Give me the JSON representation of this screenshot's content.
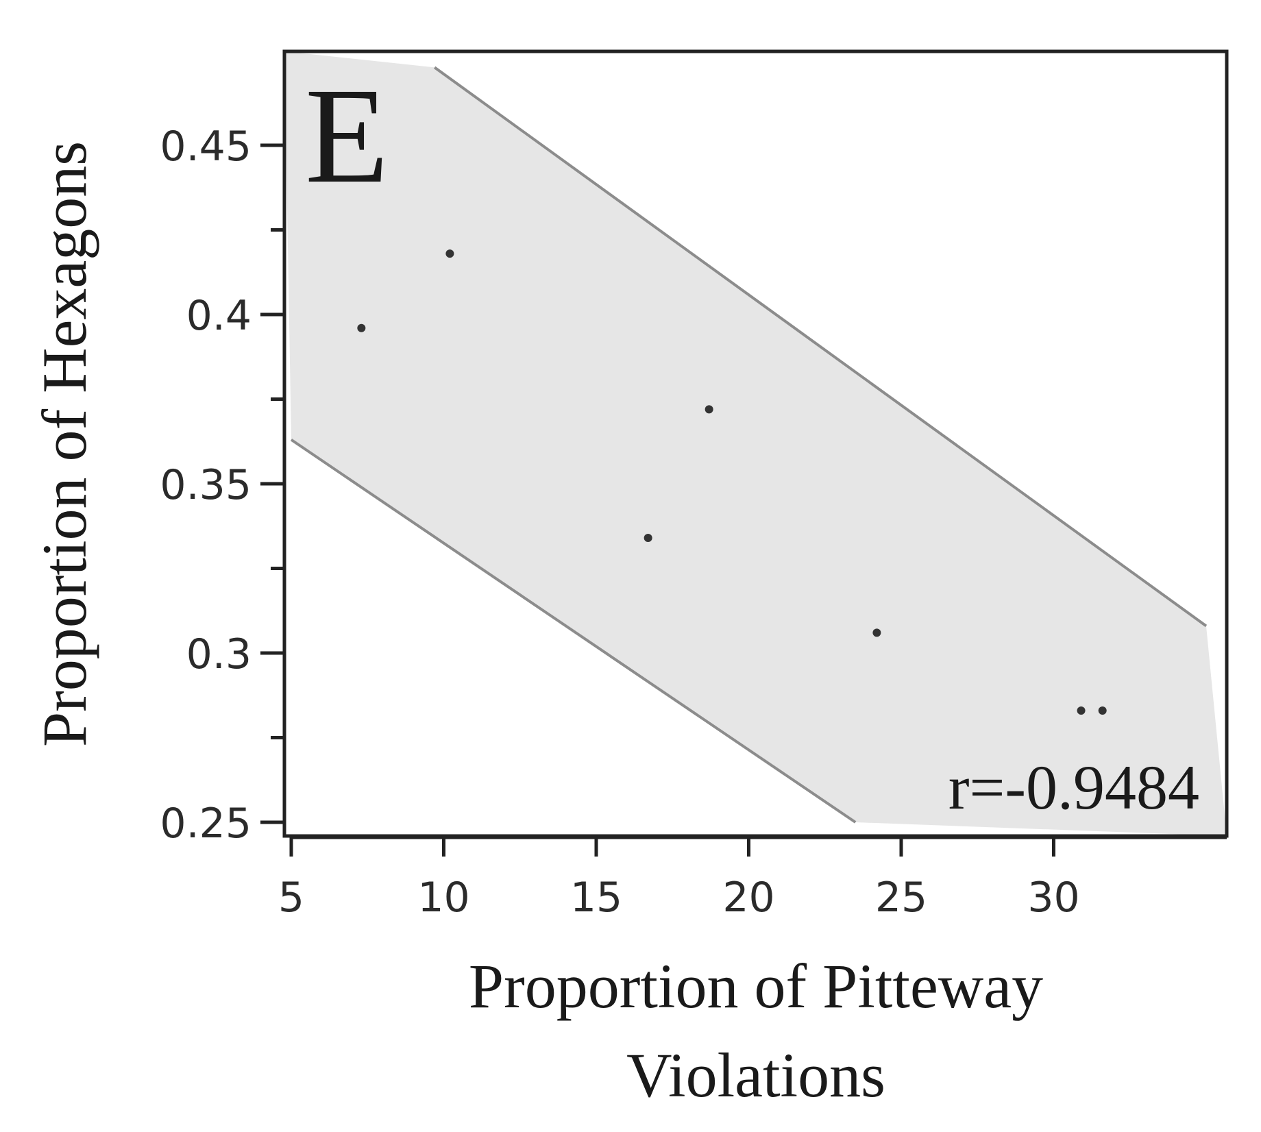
{
  "chart_data": {
    "type": "scatter",
    "panel_label": "E",
    "xlabel_lines": [
      "Proportion of Pitteway",
      "Violations"
    ],
    "ylabel": "Proportion of Hexagons",
    "xlim": [
      5,
      35
    ],
    "ylim": [
      0.25,
      0.475
    ],
    "x_ticks": [
      5,
      10,
      15,
      20,
      25,
      30
    ],
    "x_tick_labels": [
      "5",
      "10",
      "15",
      "20",
      "25",
      "30"
    ],
    "y_ticks": [
      0.25,
      0.3,
      0.35,
      0.4,
      0.45
    ],
    "y_tick_labels": [
      "0.25",
      "0.3",
      "0.35",
      "0.4",
      "0.45"
    ],
    "y_minor_ticks": [
      0.275,
      0.325,
      0.375,
      0.425
    ],
    "points": [
      {
        "x": 7.3,
        "y": 0.396
      },
      {
        "x": 10.2,
        "y": 0.418
      },
      {
        "x": 16.7,
        "y": 0.334
      },
      {
        "x": 18.7,
        "y": 0.372
      },
      {
        "x": 24.2,
        "y": 0.306
      },
      {
        "x": 30.9,
        "y": 0.283
      },
      {
        "x": 31.6,
        "y": 0.283
      }
    ],
    "confidence_band": {
      "upper": [
        [
          9.7,
          0.473
        ],
        [
          35,
          0.308
        ]
      ],
      "lower": [
        [
          5,
          0.363
        ],
        [
          23.5,
          0.25
        ]
      ]
    },
    "annotation": "r=-0.9484",
    "grid": false,
    "colors": {
      "band_fill": "#e6e6e6",
      "band_edge": "#8c8c8c",
      "points": "#333333",
      "axes": "#222222"
    }
  }
}
